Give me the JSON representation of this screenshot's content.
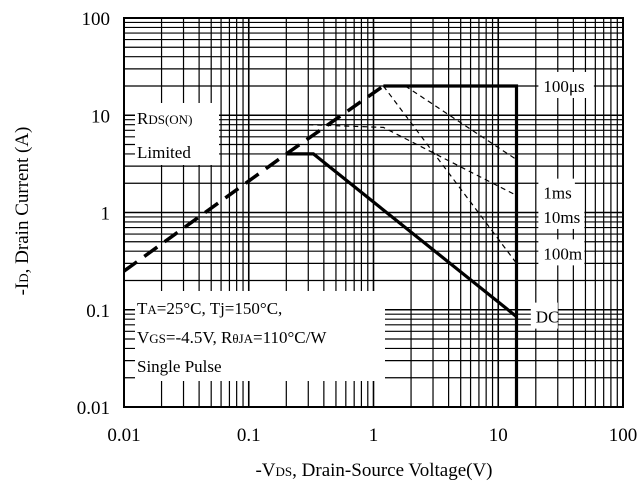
{
  "chart_data": {
    "type": "line",
    "scale": {
      "x": "log",
      "y": "log"
    },
    "xlim": [
      0.01,
      100
    ],
    "ylim": [
      0.01,
      100
    ],
    "grid": true,
    "xlabel": {
      "main": "-V",
      "sub": "DS",
      "rest": ", Drain-Source Voltage(V)"
    },
    "ylabel": {
      "main": "-I",
      "sub": "D",
      "rest": ", Drain Current (A)"
    },
    "x_ticks": [
      {
        "value": 0.01,
        "label": "0.01"
      },
      {
        "value": 0.1,
        "label": "0.1"
      },
      {
        "value": 1,
        "label": "1"
      },
      {
        "value": 10,
        "label": "10"
      },
      {
        "value": 100,
        "label": "100"
      }
    ],
    "y_ticks": [
      {
        "value": 0.01,
        "label": "0.01"
      },
      {
        "value": 0.1,
        "label": "0.1"
      },
      {
        "value": 1,
        "label": "1"
      },
      {
        "value": 10,
        "label": "10"
      },
      {
        "value": 100,
        "label": "100"
      }
    ],
    "series": [
      {
        "name": "",
        "style": "bold-dashed",
        "points": [
          [
            0.01,
            0.25
          ],
          [
            0.2,
            4.0
          ],
          [
            1.2,
            20
          ]
        ]
      },
      {
        "name": "100μs",
        "style": "bold-solid",
        "points": [
          [
            1.2,
            20
          ],
          [
            14,
            20
          ],
          [
            14,
            0.01
          ]
        ]
      },
      {
        "name": "1ms",
        "style": "thin-dashed",
        "points": [
          [
            0.3,
            8
          ],
          [
            1.2,
            7.5
          ],
          [
            14,
            1.5
          ]
        ]
      },
      {
        "name": "10ms",
        "style": "thin-dashed",
        "points": [
          [
            1.8,
            20
          ],
          [
            14,
            3.5
          ]
        ]
      },
      {
        "name": "100m",
        "style": "thin-dashed",
        "points": [
          [
            1.2,
            20
          ],
          [
            14,
            0.3
          ]
        ]
      },
      {
        "name": "DC",
        "style": "bold-solid",
        "points": [
          [
            0.2,
            4.0
          ],
          [
            0.33,
            4.0
          ],
          [
            14,
            0.085
          ]
        ]
      }
    ],
    "curve_labels": [
      {
        "text": "100μs",
        "x": 23,
        "y": 20
      },
      {
        "text": "1ms",
        "x": 23,
        "y": 1.6
      },
      {
        "text": "10ms",
        "x": 23,
        "y": 0.9
      },
      {
        "text": "100m",
        "x": 23,
        "y": 0.38
      },
      {
        "text": "DC",
        "x": 20,
        "y": 0.085
      }
    ],
    "annotations": {
      "rds_line1": {
        "main": "R",
        "sub": "DS(ON)"
      },
      "rds_line2": "Limited",
      "cond_line1": {
        "ta": "T",
        "ta_sub": "A",
        "ta_rest": "=25°C, Tj=150°C,"
      },
      "cond_line2": {
        "vgs": "V",
        "vgs_sub": "GS",
        "vgs_rest": "=-4.5V, R",
        "r_sub": "θJA",
        "r_rest": "=110°C/W"
      },
      "cond_line3": "Single Pulse"
    }
  }
}
